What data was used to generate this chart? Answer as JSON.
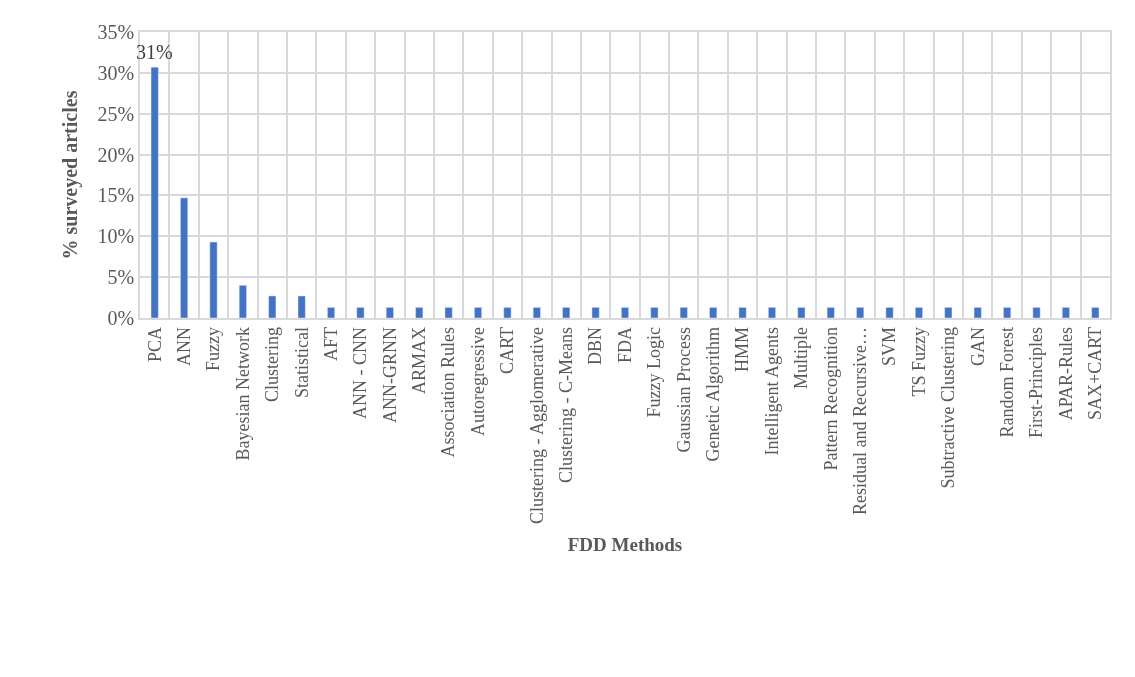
{
  "chart_data": {
    "type": "bar",
    "xlabel": "FDD Methods",
    "ylabel": "% surveyed articles",
    "categories": [
      "PCA",
      "ANN",
      "Fuzzy",
      "Bayesian Network",
      "Clustering",
      "Statistical",
      "AFT",
      "ANN - CNN",
      "ANN-GRNN",
      "ARMAX",
      "Association Rules",
      "Autoregressive",
      "CART",
      "Clustering - Agglomerative",
      "Clustering - C-Means",
      "DBN",
      "FDA",
      "Fuzzy Logic",
      "Gaussian Process",
      "Genetic Algorithm",
      "HMM",
      "Intelligent Agents",
      "Multiple",
      "Pattern Recognition",
      "Residual and Recursive…",
      "SVM",
      "TS Fuzzy",
      "Subtractive Clustering",
      "GAN",
      "Random Forest",
      "First-Principles",
      "APAR-Rules",
      "SAX+CART"
    ],
    "values": [
      30.7,
      14.7,
      9.3,
      4.0,
      2.7,
      2.7,
      1.3,
      1.3,
      1.3,
      1.3,
      1.3,
      1.3,
      1.3,
      1.3,
      1.3,
      1.3,
      1.3,
      1.3,
      1.3,
      1.3,
      1.3,
      1.3,
      1.3,
      1.3,
      1.3,
      1.3,
      1.3,
      1.3,
      1.3,
      1.3,
      1.3,
      1.3,
      1.3
    ],
    "value_labels": [
      "31%",
      null,
      null,
      null,
      null,
      null,
      null,
      null,
      null,
      null,
      null,
      null,
      null,
      null,
      null,
      null,
      null,
      null,
      null,
      null,
      null,
      null,
      null,
      null,
      null,
      null,
      null,
      null,
      null,
      null,
      null,
      null,
      null
    ],
    "color": "#4472c4",
    "ylim": [
      0,
      35
    ],
    "yticks": [
      {
        "value": 0,
        "label": "0%"
      },
      {
        "value": 5,
        "label": "5%"
      },
      {
        "value": 10,
        "label": "10%"
      },
      {
        "value": 15,
        "label": "15%"
      },
      {
        "value": 20,
        "label": "20%"
      },
      {
        "value": 25,
        "label": "25%"
      },
      {
        "value": 30,
        "label": "30%"
      },
      {
        "value": 35,
        "label": "35%"
      }
    ],
    "grid": true,
    "legend": false
  }
}
